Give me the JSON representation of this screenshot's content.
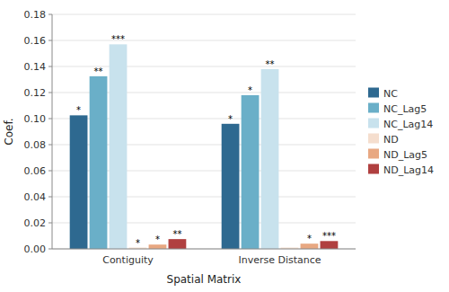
{
  "chart_data": {
    "type": "bar",
    "xlabel": "Spatial Matrix",
    "ylabel": "Coef.",
    "categories": [
      "Contiguity",
      "Inverse Distance"
    ],
    "series": [
      {
        "name": "NC",
        "color": "#2e6990",
        "values": [
          0.1025,
          0.096
        ],
        "annotations": [
          "*",
          "*"
        ]
      },
      {
        "name": "NC_Lag5",
        "color": "#6aafc8",
        "values": [
          0.1325,
          0.118
        ],
        "annotations": [
          "**",
          "*"
        ]
      },
      {
        "name": "NC_Lag14",
        "color": "#c8e2ed",
        "values": [
          0.157,
          0.138
        ],
        "annotations": [
          "***",
          "**"
        ]
      },
      {
        "name": "ND",
        "color": "#f5dece",
        "values": [
          0.001,
          0.001
        ],
        "annotations": [
          "*",
          null
        ]
      },
      {
        "name": "ND_Lag5",
        "color": "#e8a882",
        "values": [
          0.0033,
          0.004
        ],
        "annotations": [
          "*",
          "*"
        ]
      },
      {
        "name": "ND_Lag14",
        "color": "#b04040",
        "values": [
          0.0075,
          0.006
        ],
        "annotations": [
          "**",
          "***"
        ]
      }
    ],
    "ylim": [
      0,
      0.18
    ],
    "yticks": [
      {
        "value": 0,
        "label": "0.00"
      },
      {
        "value": 0.02,
        "label": "0.02"
      },
      {
        "value": 0.04,
        "label": "0.04"
      },
      {
        "value": 0.06,
        "label": "0.06"
      },
      {
        "value": 0.08,
        "label": "0.08"
      },
      {
        "value": 0.1,
        "label": "0.10"
      },
      {
        "value": 0.12,
        "label": "0.12"
      },
      {
        "value": 0.14,
        "label": "0.14"
      },
      {
        "value": 0.16,
        "label": "0.16"
      },
      {
        "value": 0.18,
        "label": "0.18"
      }
    ],
    "grid": true,
    "legend": "right"
  }
}
